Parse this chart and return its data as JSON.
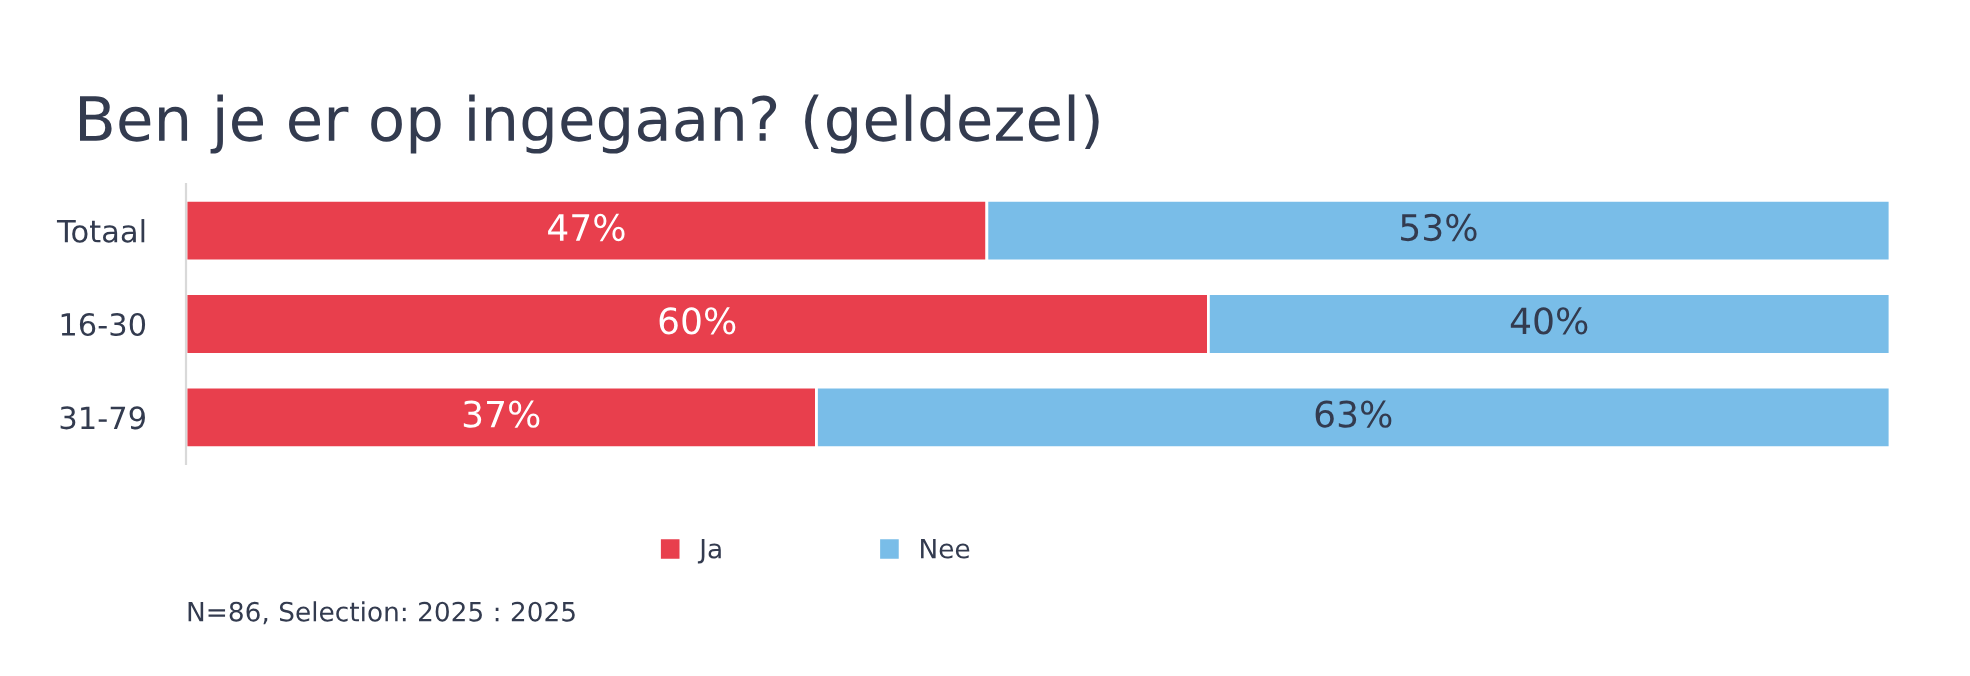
{
  "chart_data": {
    "type": "bar",
    "orientation": "horizontal",
    "stacked": true,
    "title": "Ben je er op ingegaan? (geldezel)",
    "categories": [
      "Totaal",
      "16-30",
      "31-79"
    ],
    "series": [
      {
        "name": "Ja",
        "color": "#e83f4d",
        "values": [
          47,
          60,
          37
        ],
        "value_labels": [
          "47%",
          "60%",
          "37%"
        ]
      },
      {
        "name": "Nee",
        "color": "#79bde8",
        "values": [
          53,
          40,
          63
        ],
        "value_labels": [
          "53%",
          "40%",
          "63%"
        ]
      }
    ],
    "xlim": [
      0,
      100
    ],
    "tick_labels": "y",
    "legend": "bottom",
    "annotations": [
      "N=86, Selection: 2025 : 2025"
    ]
  }
}
